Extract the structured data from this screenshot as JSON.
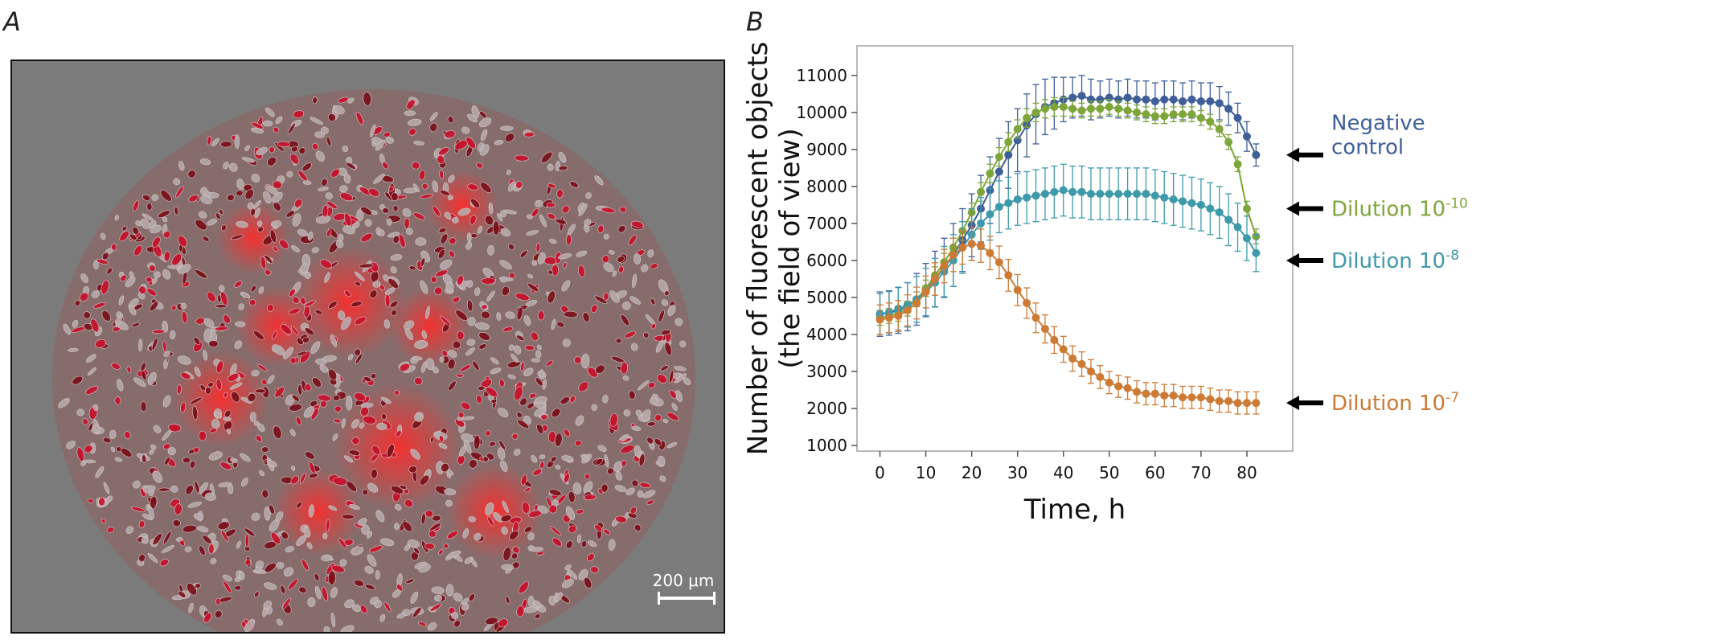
{
  "panels": {
    "a_label": "A",
    "b_label": "B"
  },
  "micrograph": {
    "scale_label": "200 μm"
  },
  "chart_data": {
    "type": "line",
    "xlabel": "Time, h",
    "ylabel_line1": "Number of fluorescent objects",
    "ylabel_line2": "(the field of view)",
    "xlim": [
      -5,
      90
    ],
    "ylim": [
      850,
      11800
    ],
    "xticks": [
      0,
      10,
      20,
      30,
      40,
      50,
      60,
      70,
      80
    ],
    "yticks": [
      1000,
      2000,
      3000,
      4000,
      5000,
      6000,
      7000,
      8000,
      9000,
      10000,
      11000
    ],
    "grid": false,
    "legend": "arrow labels at right end of each series",
    "series": [
      {
        "label_lines": [
          "Negative",
          "control"
        ],
        "color": "#3e5f97",
        "x": [
          0,
          2,
          4,
          6,
          8,
          10,
          12,
          14,
          16,
          18,
          20,
          22,
          24,
          26,
          28,
          30,
          32,
          34,
          36,
          38,
          40,
          42,
          44,
          46,
          48,
          50,
          52,
          54,
          56,
          58,
          60,
          62,
          64,
          66,
          68,
          70,
          72,
          74,
          76,
          78,
          80,
          82
        ],
        "y": [
          4550,
          4580,
          4650,
          4750,
          4950,
          5200,
          5500,
          5800,
          6150,
          6550,
          6950,
          7400,
          7900,
          8400,
          8850,
          9250,
          9650,
          9950,
          10150,
          10250,
          10350,
          10400,
          10450,
          10350,
          10350,
          10400,
          10350,
          10400,
          10350,
          10350,
          10300,
          10350,
          10350,
          10300,
          10350,
          10300,
          10300,
          10250,
          10100,
          9850,
          9350,
          8850
        ],
        "err": [
          600,
          600,
          620,
          650,
          700,
          720,
          750,
          800,
          850,
          850,
          850,
          900,
          900,
          900,
          900,
          850,
          850,
          800,
          750,
          700,
          600,
          550,
          550,
          550,
          500,
          500,
          500,
          500,
          500,
          500,
          500,
          500,
          500,
          500,
          500,
          500,
          500,
          450,
          450,
          400,
          400,
          300
        ]
      },
      {
        "label_lines": [
          "Dilution 10",
          "-10"
        ],
        "color": "#7ea53a",
        "x": [
          0,
          2,
          4,
          6,
          8,
          10,
          12,
          14,
          16,
          18,
          20,
          22,
          24,
          26,
          28,
          30,
          32,
          34,
          36,
          38,
          40,
          42,
          44,
          46,
          48,
          50,
          52,
          54,
          56,
          58,
          60,
          62,
          64,
          66,
          68,
          70,
          72,
          74,
          76,
          78,
          80,
          82
        ],
        "y": [
          4450,
          4500,
          4560,
          4700,
          4950,
          5250,
          5600,
          5950,
          6350,
          6800,
          7300,
          7850,
          8350,
          8800,
          9200,
          9550,
          9850,
          10000,
          10100,
          10150,
          10150,
          10100,
          10050,
          10100,
          10100,
          10150,
          10100,
          10050,
          10000,
          9950,
          9900,
          9900,
          9950,
          9950,
          9950,
          9850,
          9750,
          9550,
          9200,
          8600,
          7400,
          6650
        ],
        "err": [
          200,
          200,
          200,
          200,
          200,
          220,
          230,
          240,
          250,
          250,
          250,
          250,
          250,
          250,
          250,
          250,
          250,
          250,
          250,
          250,
          250,
          200,
          200,
          200,
          200,
          200,
          200,
          200,
          200,
          200,
          200,
          200,
          200,
          200,
          200,
          200,
          200,
          200,
          200,
          200,
          200,
          200
        ]
      },
      {
        "label_lines": [
          "Dilution 10",
          "-8"
        ],
        "color": "#3e9aab",
        "x": [
          0,
          2,
          4,
          6,
          8,
          10,
          12,
          14,
          16,
          18,
          20,
          22,
          24,
          26,
          28,
          30,
          32,
          34,
          36,
          38,
          40,
          42,
          44,
          46,
          48,
          50,
          52,
          54,
          56,
          58,
          60,
          62,
          64,
          66,
          68,
          70,
          72,
          74,
          76,
          78,
          80,
          82
        ],
        "y": [
          4550,
          4600,
          4700,
          4800,
          4950,
          5150,
          5400,
          5700,
          6000,
          6350,
          6700,
          7000,
          7250,
          7450,
          7550,
          7650,
          7700,
          7750,
          7800,
          7850,
          7900,
          7850,
          7850,
          7800,
          7800,
          7800,
          7800,
          7800,
          7800,
          7800,
          7750,
          7700,
          7650,
          7600,
          7550,
          7500,
          7400,
          7300,
          7100,
          6900,
          6600,
          6200
        ],
        "err": [
          550,
          560,
          580,
          600,
          620,
          640,
          660,
          680,
          700,
          700,
          700,
          700,
          700,
          700,
          700,
          700,
          700,
          700,
          700,
          700,
          700,
          700,
          700,
          700,
          700,
          700,
          700,
          700,
          700,
          700,
          700,
          700,
          700,
          700,
          700,
          700,
          700,
          700,
          700,
          650,
          600,
          500
        ]
      },
      {
        "label_lines": [
          "Dilution 10",
          "-7"
        ],
        "color": "#cc7a35",
        "x": [
          0,
          2,
          4,
          6,
          8,
          10,
          12,
          14,
          16,
          18,
          20,
          22,
          24,
          26,
          28,
          30,
          32,
          34,
          36,
          38,
          40,
          42,
          44,
          46,
          48,
          50,
          52,
          54,
          56,
          58,
          60,
          62,
          64,
          66,
          68,
          70,
          72,
          74,
          76,
          78,
          80,
          82
        ],
        "y": [
          4400,
          4450,
          4500,
          4650,
          4850,
          5150,
          5500,
          5850,
          6150,
          6350,
          6450,
          6400,
          6200,
          5950,
          5600,
          5200,
          4850,
          4450,
          4150,
          3850,
          3600,
          3350,
          3200,
          3000,
          2850,
          2700,
          2600,
          2550,
          2450,
          2400,
          2400,
          2350,
          2350,
          2300,
          2300,
          2300,
          2250,
          2200,
          2200,
          2150,
          2150,
          2150
        ],
        "err": [
          400,
          400,
          420,
          420,
          430,
          430,
          440,
          450,
          450,
          450,
          450,
          450,
          450,
          440,
          430,
          420,
          410,
          400,
          380,
          360,
          350,
          340,
          330,
          320,
          310,
          300,
          300,
          300,
          300,
          300,
          300,
          300,
          300,
          300,
          300,
          300,
          300,
          300,
          300,
          300,
          300,
          300
        ]
      }
    ]
  }
}
